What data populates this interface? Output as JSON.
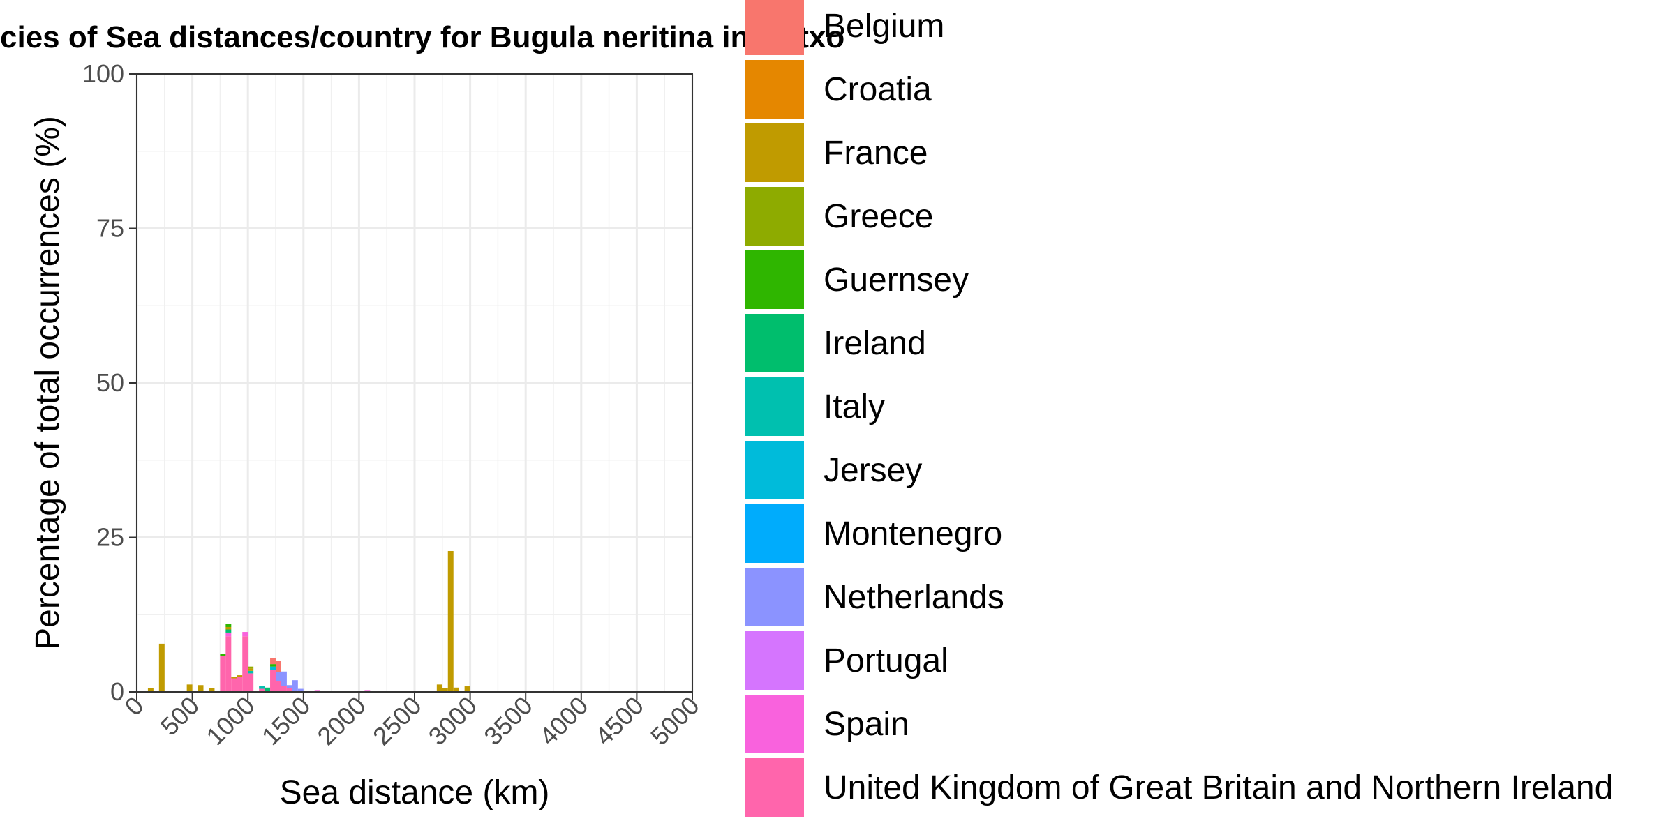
{
  "chart_data": {
    "type": "bar",
    "stacked": true,
    "title": "cies of Sea distances/country for Bugula neritina in Getxo",
    "xlabel": "Sea distance (km)",
    "ylabel": "Percentage of total occurrences (%)",
    "xlim": [
      0,
      5000
    ],
    "ylim": [
      0,
      100
    ],
    "x_ticks": [
      "0",
      "500",
      "1000",
      "1500",
      "2000",
      "2500",
      "3000",
      "3500",
      "4000",
      "4500",
      "5000"
    ],
    "y_ticks": [
      "0",
      "25",
      "50",
      "75",
      "100"
    ],
    "bin_width_km": 50,
    "grid": true,
    "legend_position": "right",
    "legend": [
      {
        "name": "Belgium",
        "color": "#F8766D"
      },
      {
        "name": "Croatia",
        "color": "#E58700"
      },
      {
        "name": "France",
        "color": "#C09B00"
      },
      {
        "name": "Greece",
        "color": "#8EAB00"
      },
      {
        "name": "Guernsey",
        "color": "#2FB600"
      },
      {
        "name": "Ireland",
        "color": "#00BE6D"
      },
      {
        "name": "Italy",
        "color": "#00C0AF"
      },
      {
        "name": "Jersey",
        "color": "#00BBDA"
      },
      {
        "name": "Montenegro",
        "color": "#00ACFC"
      },
      {
        "name": "Netherlands",
        "color": "#8B93FF"
      },
      {
        "name": "Portugal",
        "color": "#D575FE"
      },
      {
        "name": "Spain",
        "color": "#F962DD"
      },
      {
        "name": "United Kingdom of Great Britain and Northern Ireland",
        "color": "#FF65AC"
      }
    ],
    "bars": [
      {
        "x": 125,
        "segments": [
          {
            "country": "France",
            "value": 0.6
          }
        ]
      },
      {
        "x": 225,
        "segments": [
          {
            "country": "France",
            "value": 7.8
          }
        ]
      },
      {
        "x": 475,
        "segments": [
          {
            "country": "France",
            "value": 1.2
          }
        ]
      },
      {
        "x": 575,
        "segments": [
          {
            "country": "France",
            "value": 1.1
          }
        ]
      },
      {
        "x": 675,
        "segments": [
          {
            "country": "France",
            "value": 0.6
          }
        ]
      },
      {
        "x": 775,
        "segments": [
          {
            "country": "United Kingdom of Great Britain and Northern Ireland",
            "value": 5.8
          },
          {
            "country": "Guernsey",
            "value": 0.4
          }
        ]
      },
      {
        "x": 825,
        "segments": [
          {
            "country": "United Kingdom of Great Britain and Northern Ireland",
            "value": 9.0
          },
          {
            "country": "Spain",
            "value": 0.6
          },
          {
            "country": "Ireland",
            "value": 0.5
          },
          {
            "country": "France",
            "value": 0.4
          },
          {
            "country": "Guernsey",
            "value": 0.5
          }
        ]
      },
      {
        "x": 875,
        "segments": [
          {
            "country": "United Kingdom of Great Britain and Northern Ireland",
            "value": 2.2
          },
          {
            "country": "France",
            "value": 0.2
          }
        ]
      },
      {
        "x": 925,
        "segments": [
          {
            "country": "United Kingdom of Great Britain and Northern Ireland",
            "value": 2.4
          },
          {
            "country": "France",
            "value": 0.3
          }
        ]
      },
      {
        "x": 975,
        "segments": [
          {
            "country": "United Kingdom of Great Britain and Northern Ireland",
            "value": 9.0
          },
          {
            "country": "Spain",
            "value": 0.7
          }
        ]
      },
      {
        "x": 1025,
        "segments": [
          {
            "country": "United Kingdom of Great Britain and Northern Ireland",
            "value": 3.0
          },
          {
            "country": "Italy",
            "value": 0.4
          },
          {
            "country": "France",
            "value": 0.4
          },
          {
            "country": "Greece",
            "value": 0.3
          }
        ]
      },
      {
        "x": 1125,
        "segments": [
          {
            "country": "United Kingdom of Great Britain and Northern Ireland",
            "value": 0.5
          },
          {
            "country": "Italy",
            "value": 0.4
          }
        ]
      },
      {
        "x": 1175,
        "segments": [
          {
            "country": "Ireland",
            "value": 0.7
          }
        ]
      },
      {
        "x": 1225,
        "segments": [
          {
            "country": "United Kingdom of Great Britain and Northern Ireland",
            "value": 3.5
          },
          {
            "country": "Jersey",
            "value": 0.6
          },
          {
            "country": "Guernsey",
            "value": 0.4
          },
          {
            "country": "Belgium",
            "value": 1.0
          }
        ]
      },
      {
        "x": 1275,
        "segments": [
          {
            "country": "United Kingdom of Great Britain and Northern Ireland",
            "value": 1.8
          },
          {
            "country": "Netherlands",
            "value": 1.4
          },
          {
            "country": "Belgium",
            "value": 1.8
          }
        ]
      },
      {
        "x": 1325,
        "segments": [
          {
            "country": "United Kingdom of Great Britain and Northern Ireland",
            "value": 1.0
          },
          {
            "country": "Netherlands",
            "value": 2.3
          }
        ]
      },
      {
        "x": 1375,
        "segments": [
          {
            "country": "United Kingdom of Great Britain and Northern Ireland",
            "value": 0.6
          },
          {
            "country": "Netherlands",
            "value": 0.5
          }
        ]
      },
      {
        "x": 1425,
        "segments": [
          {
            "country": "Netherlands",
            "value": 1.9
          }
        ]
      },
      {
        "x": 1475,
        "segments": [
          {
            "country": "Netherlands",
            "value": 0.5
          }
        ]
      },
      {
        "x": 1575,
        "segments": [
          {
            "country": "Netherlands",
            "value": 0.2
          }
        ]
      },
      {
        "x": 1625,
        "segments": [
          {
            "country": "Spain",
            "value": 0.3
          }
        ]
      },
      {
        "x": 2025,
        "segments": [
          {
            "country": "Spain",
            "value": 0.2
          }
        ]
      },
      {
        "x": 2075,
        "segments": [
          {
            "country": "Spain",
            "value": 0.3
          }
        ]
      },
      {
        "x": 2725,
        "segments": [
          {
            "country": "France",
            "value": 1.2
          }
        ]
      },
      {
        "x": 2775,
        "segments": [
          {
            "country": "France",
            "value": 0.6
          }
        ]
      },
      {
        "x": 2825,
        "segments": [
          {
            "country": "France",
            "value": 22.8
          }
        ]
      },
      {
        "x": 2875,
        "segments": [
          {
            "country": "France",
            "value": 0.7
          }
        ]
      },
      {
        "x": 2975,
        "segments": [
          {
            "country": "France",
            "value": 0.9
          }
        ]
      }
    ]
  }
}
